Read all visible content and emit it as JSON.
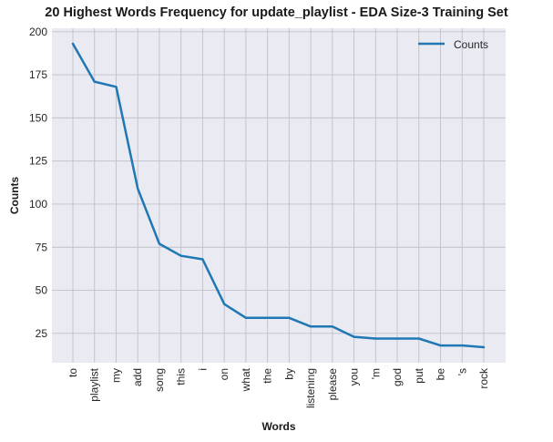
{
  "chart_data": {
    "type": "line",
    "title": "20 Highest Words Frequency for update_playlist - EDA Size-3 Training Set",
    "xlabel": "Words",
    "ylabel": "Counts",
    "categories": [
      "to",
      "playlist",
      "my",
      "add",
      "song",
      "this",
      "i",
      "on",
      "what",
      "the",
      "by",
      "listening",
      "please",
      "you",
      "'m",
      "god",
      "put",
      "be",
      "'s",
      "rock"
    ],
    "series": [
      {
        "name": "Counts",
        "values": [
          193,
          171,
          168,
          109,
          77,
          70,
          68,
          42,
          34,
          34,
          34,
          29,
          29,
          23,
          22,
          22,
          22,
          18,
          18,
          17
        ],
        "color": "#1f77b4"
      }
    ],
    "yticks": [
      25,
      50,
      75,
      100,
      125,
      150,
      175,
      200
    ],
    "ylim": [
      8,
      202
    ],
    "grid": true,
    "legend": "top-right",
    "background_color": "#eaeaf2",
    "grid_color": "#c0c0c8"
  }
}
